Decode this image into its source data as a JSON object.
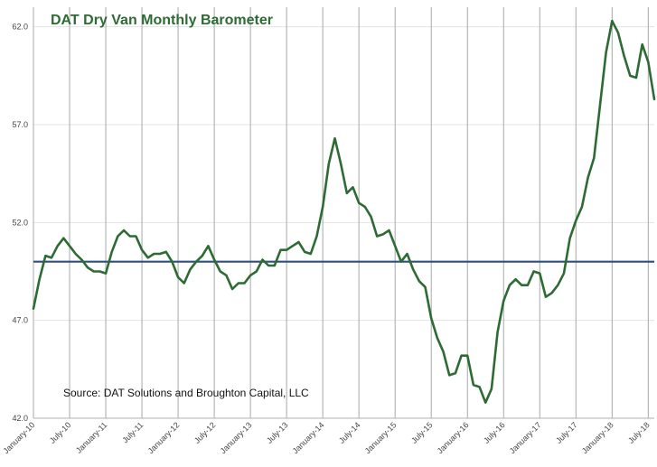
{
  "chart_data": {
    "type": "line",
    "title": "DAT Dry Van Monthly Barometer",
    "source_note": "Source: DAT Solutions and Broughton Capital, LLC",
    "xlabel": "",
    "ylabel": "",
    "ylim": [
      42.0,
      63.0
    ],
    "yticks": [
      "42.0",
      "47.0",
      "52.0",
      "57.0",
      "62.0"
    ],
    "grid": "vertical lines at each x tick, horizontal lines at each y tick",
    "x_tick_labels": [
      "January-10",
      "July-10",
      "January-11",
      "July-11",
      "January-12",
      "July-12",
      "January-13",
      "July-13",
      "January-14",
      "July-14",
      "January-15",
      "July-15",
      "January-16",
      "July-16",
      "January-17",
      "July-17",
      "January-18",
      "July-18"
    ],
    "reference_line": {
      "value": 50.0,
      "color": "#2f4f7f"
    },
    "series": [
      {
        "color": "#2e6b34",
        "x": [
          "January-10",
          "February-10",
          "March-10",
          "April-10",
          "May-10",
          "June-10",
          "July-10",
          "August-10",
          "September-10",
          "October-10",
          "November-10",
          "December-10",
          "January-11",
          "February-11",
          "March-11",
          "April-11",
          "May-11",
          "June-11",
          "July-11",
          "August-11",
          "September-11",
          "October-11",
          "November-11",
          "December-11",
          "January-12",
          "February-12",
          "March-12",
          "April-12",
          "May-12",
          "June-12",
          "July-12",
          "August-12",
          "September-12",
          "October-12",
          "November-12",
          "December-12",
          "January-13",
          "February-13",
          "March-13",
          "April-13",
          "May-13",
          "June-13",
          "July-13",
          "August-13",
          "September-13",
          "October-13",
          "November-13",
          "December-13",
          "January-14",
          "February-14",
          "March-14",
          "April-14",
          "May-14",
          "June-14",
          "July-14",
          "August-14",
          "September-14",
          "October-14",
          "November-14",
          "December-14",
          "January-15",
          "February-15",
          "March-15",
          "April-15",
          "May-15",
          "June-15",
          "July-15",
          "August-15",
          "September-15",
          "October-15",
          "November-15",
          "December-15",
          "January-16",
          "February-16",
          "March-16",
          "April-16",
          "May-16",
          "June-16",
          "July-16",
          "August-16",
          "September-16",
          "October-16",
          "November-16",
          "December-16",
          "January-17",
          "February-17",
          "March-17",
          "April-17",
          "May-17",
          "June-17",
          "July-17",
          "August-17",
          "September-17",
          "October-17",
          "November-17",
          "December-17",
          "January-18",
          "February-18",
          "March-18",
          "April-18",
          "May-18",
          "June-18",
          "July-18",
          "August-18"
        ],
        "values": [
          47.6,
          49.1,
          50.3,
          50.2,
          50.8,
          51.2,
          50.8,
          50.4,
          50.1,
          49.7,
          49.5,
          49.5,
          49.4,
          50.5,
          51.3,
          51.6,
          51.3,
          51.3,
          50.6,
          50.2,
          50.4,
          50.4,
          50.5,
          50.0,
          49.2,
          48.9,
          49.6,
          50.0,
          50.3,
          50.8,
          50.1,
          49.5,
          49.3,
          48.6,
          48.9,
          48.9,
          49.3,
          49.5,
          50.1,
          49.8,
          49.8,
          50.6,
          50.6,
          50.8,
          51.0,
          50.5,
          50.4,
          51.3,
          52.8,
          55.0,
          56.3,
          55.0,
          53.5,
          53.8,
          53.0,
          52.8,
          52.3,
          51.3,
          51.4,
          51.6,
          50.8,
          50.0,
          50.4,
          49.6,
          49.0,
          48.7,
          47.1,
          46.1,
          45.4,
          44.2,
          44.3,
          45.2,
          45.2,
          43.7,
          43.6,
          42.8,
          43.5,
          46.4,
          48.0,
          48.8,
          49.1,
          48.8,
          48.8,
          49.5,
          49.4,
          48.2,
          48.4,
          48.8,
          49.4,
          51.2,
          52.1,
          52.8,
          54.3,
          55.3,
          58.0,
          60.7,
          62.3,
          61.7,
          60.5,
          59.5,
          59.4,
          61.1,
          60.2,
          58.3
        ]
      }
    ]
  }
}
